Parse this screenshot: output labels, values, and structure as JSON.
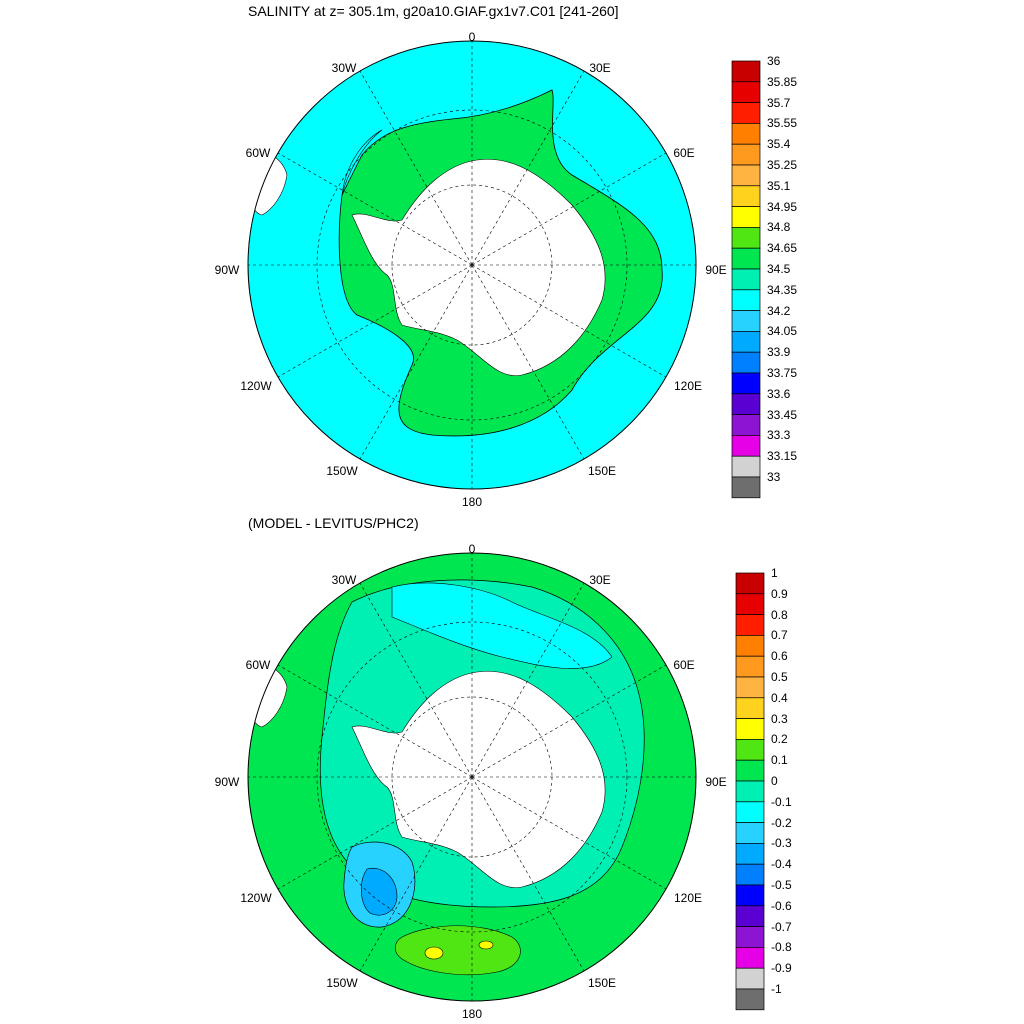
{
  "panels": [
    {
      "id": "salinity",
      "title": "SALINITY at z= 305.1m, g20a10.GIAF.gx1v7.C01 [241-260]",
      "lon_labels": [
        "0",
        "30E",
        "60E",
        "90E",
        "120E",
        "150E",
        "180",
        "150W",
        "120W",
        "90W",
        "60W",
        "30W"
      ],
      "colorbar": {
        "labels": [
          "36",
          "35.85",
          "35.7",
          "35.55",
          "35.4",
          "35.25",
          "35.1",
          "34.95",
          "34.8",
          "34.65",
          "34.5",
          "34.35",
          "34.2",
          "34.05",
          "33.9",
          "33.75",
          "33.6",
          "33.45",
          "33.3",
          "33.15",
          "33"
        ],
        "colors": [
          "#c80000",
          "#e60000",
          "#ff1e00",
          "#ff7f00",
          "#ff9a1e",
          "#ffb340",
          "#ffd21e",
          "#ffff00",
          "#50e614",
          "#00e650",
          "#00f0b4",
          "#00ffff",
          "#28d2ff",
          "#00aaff",
          "#0080ff",
          "#0000ff",
          "#5a00d2",
          "#8c14d2",
          "#e600e6",
          "#d2d2d2",
          "#6e6e6e"
        ]
      }
    },
    {
      "id": "difference",
      "title": "(MODEL - LEVITUS/PHC2)",
      "lon_labels": [
        "0",
        "30E",
        "60E",
        "90E",
        "120E",
        "150E",
        "180",
        "150W",
        "120W",
        "90W",
        "60W",
        "30W"
      ],
      "colorbar": {
        "labels": [
          "1",
          "0.9",
          "0.8",
          "0.7",
          "0.6",
          "0.5",
          "0.4",
          "0.3",
          "0.2",
          "0.1",
          "0",
          "-0.1",
          "-0.2",
          "-0.3",
          "-0.4",
          "-0.5",
          "-0.6",
          "-0.7",
          "-0.8",
          "-0.9",
          "-1"
        ],
        "colors": [
          "#c80000",
          "#e60000",
          "#ff1e00",
          "#ff7f00",
          "#ff9a1e",
          "#ffb340",
          "#ffd21e",
          "#ffff00",
          "#50e614",
          "#00e650",
          "#00f0b4",
          "#00ffff",
          "#28d2ff",
          "#00aaff",
          "#0080ff",
          "#0000ff",
          "#5a00d2",
          "#8c14d2",
          "#e600e6",
          "#d2d2d2",
          "#6e6e6e"
        ]
      }
    }
  ]
}
